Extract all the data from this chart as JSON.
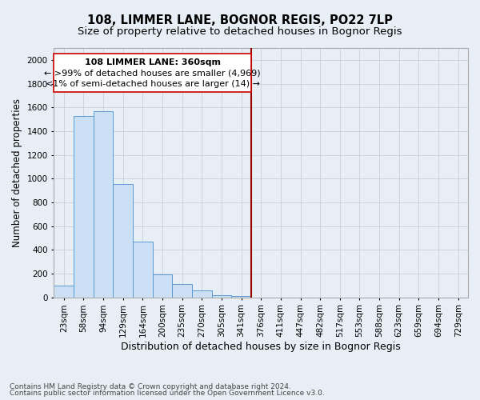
{
  "title": "108, LIMMER LANE, BOGNOR REGIS, PO22 7LP",
  "subtitle": "Size of property relative to detached houses in Bognor Regis",
  "xlabel": "Distribution of detached houses by size in Bognor Regis",
  "ylabel": "Number of detached properties",
  "footnote1": "Contains HM Land Registry data © Crown copyright and database right 2024.",
  "footnote2": "Contains public sector information licensed under the Open Government Licence v3.0.",
  "categories": [
    "23sqm",
    "58sqm",
    "94sqm",
    "129sqm",
    "164sqm",
    "200sqm",
    "235sqm",
    "270sqm",
    "305sqm",
    "341sqm",
    "376sqm",
    "411sqm",
    "447sqm",
    "482sqm",
    "517sqm",
    "553sqm",
    "588sqm",
    "623sqm",
    "659sqm",
    "694sqm",
    "729sqm"
  ],
  "values": [
    100,
    1530,
    1565,
    955,
    470,
    195,
    110,
    60,
    20,
    10,
    0,
    0,
    0,
    0,
    0,
    0,
    0,
    0,
    0,
    0,
    0
  ],
  "bar_color": "#cce0f5",
  "bar_edge_color": "#5b9bd5",
  "property_line_color": "#990000",
  "annotation_line1": "108 LIMMER LANE: 360sqm",
  "annotation_line2": "← >99% of detached houses are smaller (4,969)",
  "annotation_line3": "<1% of semi-detached houses are larger (14) →",
  "annotation_box_color": "#ffffff",
  "annotation_box_edge_color": "#cc0000",
  "ylim": [
    0,
    2100
  ],
  "yticks": [
    0,
    200,
    400,
    600,
    800,
    1000,
    1200,
    1400,
    1600,
    1800,
    2000
  ],
  "grid_color": "#c8d0dc",
  "background_color": "#e8eef5",
  "title_fontsize": 10.5,
  "subtitle_fontsize": 9.5,
  "xlabel_fontsize": 9,
  "ylabel_fontsize": 8.5,
  "annotation_fontsize": 8,
  "tick_fontsize": 7.5,
  "footnote_fontsize": 6.5,
  "property_line_index": 9.5
}
